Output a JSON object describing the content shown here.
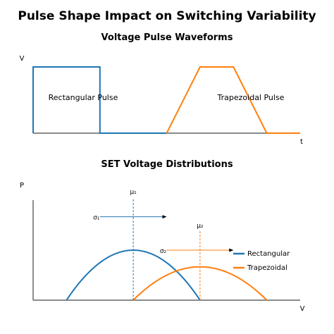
{
  "title": "Pulse Shape Impact on Switching Variability",
  "colors": {
    "rect": "#1f77b4",
    "trap": "#ff7f0e",
    "axis": "#444444"
  },
  "chart_data": [
    {
      "type": "line",
      "title": "Voltage Pulse Waveforms",
      "xlabel": "t",
      "ylabel": "V",
      "grid": false,
      "xlim": [
        0,
        8
      ],
      "ylim": [
        0,
        1
      ],
      "series": [
        {
          "name": "Rectangular Pulse",
          "x": [
            0,
            0,
            2,
            2,
            4
          ],
          "y": [
            0,
            1,
            1,
            0,
            0
          ]
        },
        {
          "name": "Trapezoidal Pulse",
          "x": [
            4,
            5,
            6,
            7,
            8
          ],
          "y": [
            0,
            1,
            1,
            0,
            0
          ]
        }
      ]
    },
    {
      "type": "line",
      "title": "SET Voltage Distributions",
      "xlabel": "V",
      "ylabel": "P",
      "grid": false,
      "legend": "right",
      "xlim": [
        0,
        8
      ],
      "ylim": [
        0,
        1.5
      ],
      "series": [
        {
          "name": "Rectangular",
          "center": 3,
          "halfwidth": 2,
          "peak": 0.75
        },
        {
          "name": "Trapezoidal",
          "center": 5,
          "halfwidth": 2,
          "peak": 0.5
        }
      ],
      "annotations": [
        {
          "label": "μ₁",
          "x": 3,
          "series": "Rectangular"
        },
        {
          "label": "μ₂",
          "x": 5,
          "series": "Trapezoidal"
        },
        {
          "label": "σ₁",
          "x": 2,
          "x2": 4,
          "y": 1.25
        },
        {
          "label": "σ₂",
          "x": 4,
          "x2": 6,
          "y": 0.75
        }
      ]
    }
  ]
}
